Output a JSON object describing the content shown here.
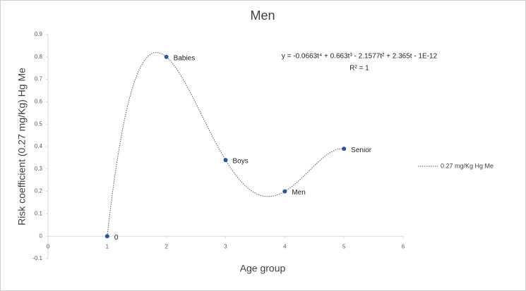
{
  "chart_data": {
    "type": "scatter",
    "title": "Men",
    "x_label": "Age group",
    "y_label": "Risk coefficient (0.27 mg/Kg) Hg Me",
    "x": [
      1,
      2,
      3,
      4,
      5
    ],
    "series": [
      {
        "name": "0.27 mg/Kg Hg Me",
        "color": "#2e5597",
        "values": [
          0,
          0.8,
          0.34,
          0.2,
          0.39
        ],
        "point_labels": [
          "0",
          "Babies",
          "Boys",
          "Men",
          "Senior"
        ]
      }
    ],
    "trendline": {
      "equation": "y = -0.0663t⁴ + 0.663t³ - 2.1577t² + 2.365t - 1E-12",
      "r_squared": "R² = 1"
    },
    "xlim": [
      0,
      6
    ],
    "xticks": [
      0,
      1,
      2,
      3,
      4,
      5,
      6
    ],
    "ylim": [
      -0.1,
      0.9
    ],
    "yticks": [
      -0.1,
      0,
      0.1,
      0.2,
      0.3,
      0.4,
      0.5,
      0.6,
      0.7,
      0.8,
      0.9
    ],
    "grid": false,
    "legend": "right"
  }
}
